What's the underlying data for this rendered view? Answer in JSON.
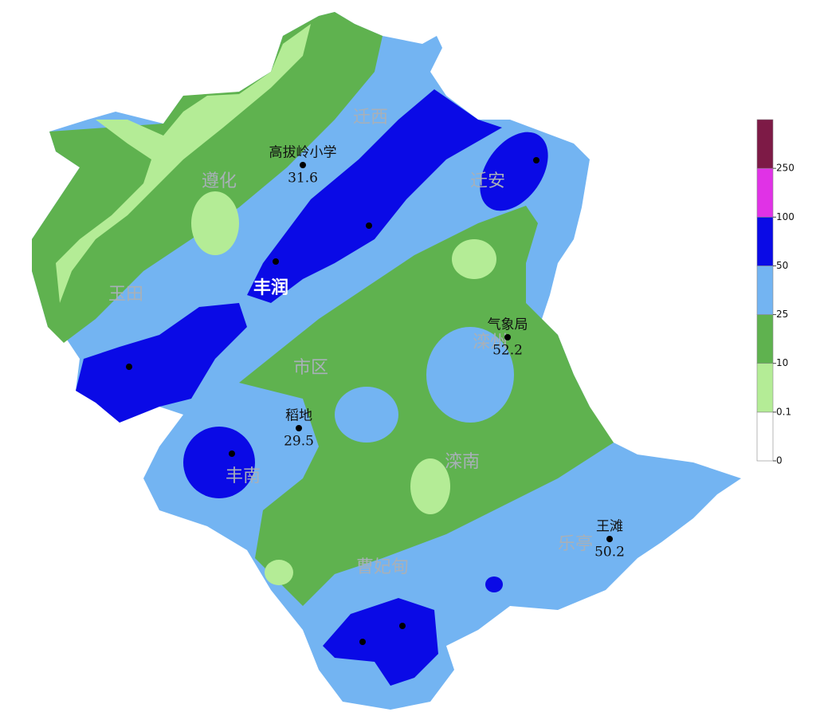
{
  "map": {
    "districts": [
      {
        "label": "迁西"
      },
      {
        "label": "遵化"
      },
      {
        "label": "迁安"
      },
      {
        "label": "玉田"
      },
      {
        "label": "丰润"
      },
      {
        "label": "市区"
      },
      {
        "label": "滦州"
      },
      {
        "label": "丰南"
      },
      {
        "label": "滦南"
      },
      {
        "label": "乐亭"
      },
      {
        "label": "曹妃甸"
      }
    ],
    "stations": [
      {
        "name": "高拔岭小学",
        "value": 31.6
      },
      {
        "name": "气象局",
        "value": 52.2
      },
      {
        "name": "稻地",
        "value": 29.5
      },
      {
        "name": "王滩",
        "value": 50.2
      }
    ],
    "legend": {
      "ticks": [
        0,
        0.1,
        10,
        25,
        50,
        100,
        250
      ],
      "colors": [
        "#ffffff",
        "#b4ec96",
        "#5fb24f",
        "#73b4f2",
        "#0a0ae6",
        "#e032e6",
        "#7d1a46"
      ]
    }
  }
}
